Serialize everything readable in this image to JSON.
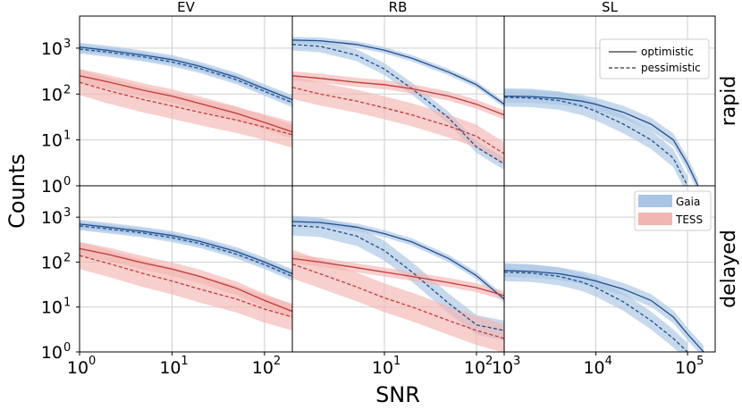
{
  "chart_data": {
    "type": "line",
    "yscale": "log",
    "xscale": "log",
    "ylabel": "Counts",
    "xlabel": "SNR",
    "ylim": [
      1,
      5000
    ],
    "columns": [
      {
        "title": "EV",
        "xlim": [
          1,
          200
        ],
        "xticks": [
          {
            "base": "10",
            "exp": "0"
          },
          {
            "base": "10",
            "exp": "1"
          },
          {
            "base": "10",
            "exp": "2"
          }
        ]
      },
      {
        "title": "RB",
        "xlim": [
          1,
          200
        ],
        "xticks": [
          {
            "base": "10",
            "exp": "1"
          },
          {
            "base": "10",
            "exp": "2"
          }
        ]
      },
      {
        "title": "SL",
        "xlim": [
          1000,
          200000
        ],
        "xticks": [
          {
            "base": "10",
            "exp": "3"
          },
          {
            "base": "10",
            "exp": "4"
          },
          {
            "base": "10",
            "exp": "5"
          }
        ]
      }
    ],
    "rows": [
      {
        "label": "rapid"
      },
      {
        "label": "delayed"
      }
    ],
    "yticks": [
      {
        "base": "10",
        "exp": "0"
      },
      {
        "base": "10",
        "exp": "1"
      },
      {
        "base": "10",
        "exp": "2"
      },
      {
        "base": "10",
        "exp": "3"
      }
    ],
    "legend_lines": {
      "optimistic": "optimistic",
      "pessimistic": "pessimistic",
      "location": "top-right (SL, rapid)"
    },
    "legend_fills": {
      "gaia": "Gaia",
      "tess": "TESS",
      "location": "top-right (SL, delayed)"
    },
    "colors": {
      "gaia_line": "#1f4e8c",
      "gaia_fill": "#a9c4e4",
      "tess_line": "#c0393b",
      "tess_fill": "#f2b6b0"
    },
    "panels": [
      {
        "row": "rapid",
        "col": "EV",
        "series": [
          {
            "survey": "Gaia",
            "style": "optimistic",
            "x": [
              1,
              2,
              5,
              10,
              20,
              50,
              100,
              200
            ],
            "y": [
              1050,
              900,
              700,
              560,
              400,
              230,
              130,
              75
            ],
            "band": 0.1
          },
          {
            "survey": "Gaia",
            "style": "pessimistic",
            "x": [
              1,
              2,
              5,
              10,
              20,
              50,
              100,
              200
            ],
            "y": [
              950,
              820,
              640,
              500,
              360,
              205,
              115,
              65
            ],
            "band": 0.1
          },
          {
            "survey": "TESS",
            "style": "optimistic",
            "x": [
              1,
              2,
              5,
              10,
              20,
              50,
              100,
              200
            ],
            "y": [
              250,
              185,
              120,
              90,
              62,
              38,
              24,
              15
            ],
            "band": 0.15
          },
          {
            "survey": "TESS",
            "style": "pessimistic",
            "x": [
              1,
              2,
              5,
              10,
              20,
              50,
              100,
              200
            ],
            "y": [
              180,
              120,
              75,
              55,
              40,
              27,
              19,
              13
            ],
            "band": 0.28
          }
        ]
      },
      {
        "row": "rapid",
        "col": "RB",
        "series": [
          {
            "survey": "Gaia",
            "style": "optimistic",
            "x": [
              1,
              2,
              5,
              10,
              20,
              50,
              100,
              200
            ],
            "y": [
              1500,
              1450,
              1200,
              900,
              600,
              300,
              160,
              60
            ],
            "band": 0.07
          },
          {
            "survey": "Gaia",
            "style": "pessimistic",
            "x": [
              1,
              2,
              5,
              10,
              20,
              50,
              100,
              200
            ],
            "y": [
              1200,
              1100,
              700,
              350,
              130,
              30,
              7,
              3
            ],
            "band": 0.13
          },
          {
            "survey": "TESS",
            "style": "optimistic",
            "x": [
              1,
              2,
              5,
              10,
              20,
              50,
              100,
              200
            ],
            "y": [
              250,
              220,
              180,
              160,
              130,
              90,
              60,
              35
            ],
            "band": 0.1
          },
          {
            "survey": "TESS",
            "style": "pessimistic",
            "x": [
              1,
              2,
              5,
              10,
              20,
              50,
              100,
              200
            ],
            "y": [
              140,
              100,
              70,
              50,
              35,
              20,
              12,
              5
            ],
            "band": 0.25
          }
        ]
      },
      {
        "row": "rapid",
        "col": "SL",
        "series": [
          {
            "survey": "Gaia",
            "style": "optimistic",
            "x": [
              1000,
              2000,
              4000,
              7000,
              10000,
              20000,
              40000,
              70000,
              100000,
              130000
            ],
            "y": [
              90,
              88,
              80,
              70,
              60,
              40,
              22,
              10,
              3,
              1
            ],
            "band": 0.14
          },
          {
            "survey": "Gaia",
            "style": "pessimistic",
            "x": [
              1000,
              2000,
              4000,
              7000,
              10000,
              20000,
              40000,
              70000,
              100000
            ],
            "y": [
              85,
              82,
              72,
              55,
              42,
              22,
              10,
              4,
              1
            ],
            "band": 0.2
          }
        ]
      },
      {
        "row": "delayed",
        "col": "EV",
        "series": [
          {
            "survey": "Gaia",
            "style": "optimistic",
            "x": [
              1,
              2,
              5,
              10,
              20,
              50,
              100,
              200
            ],
            "y": [
              700,
              600,
              480,
              390,
              290,
              170,
              100,
              55
            ],
            "band": 0.1
          },
          {
            "survey": "Gaia",
            "style": "pessimistic",
            "x": [
              1,
              2,
              5,
              10,
              20,
              50,
              100,
              200
            ],
            "y": [
              640,
              550,
              440,
              350,
              260,
              150,
              88,
              48
            ],
            "band": 0.1
          },
          {
            "survey": "TESS",
            "style": "optimistic",
            "x": [
              1,
              2,
              5,
              10,
              20,
              50,
              100,
              200
            ],
            "y": [
              200,
              150,
              95,
              70,
              48,
              26,
              14,
              8
            ],
            "band": 0.15
          },
          {
            "survey": "TESS",
            "style": "pessimistic",
            "x": [
              1,
              2,
              5,
              10,
              20,
              50,
              100,
              200
            ],
            "y": [
              140,
              95,
              55,
              38,
              25,
              15,
              9,
              6
            ],
            "band": 0.3
          }
        ]
      },
      {
        "row": "delayed",
        "col": "RB",
        "series": [
          {
            "survey": "Gaia",
            "style": "optimistic",
            "x": [
              1,
              2,
              5,
              10,
              20,
              50,
              100,
              200
            ],
            "y": [
              800,
              760,
              600,
              430,
              280,
              120,
              50,
              15
            ],
            "band": 0.08
          },
          {
            "survey": "Gaia",
            "style": "pessimistic",
            "x": [
              1,
              2,
              5,
              10,
              20,
              50,
              100,
              200
            ],
            "y": [
              650,
              600,
              380,
              180,
              60,
              12,
              4,
              3
            ],
            "band": 0.22
          },
          {
            "survey": "TESS",
            "style": "optimistic",
            "x": [
              1,
              2,
              5,
              10,
              20,
              50,
              100,
              200
            ],
            "y": [
              120,
              100,
              75,
              60,
              48,
              35,
              27,
              18
            ],
            "band": 0.1
          },
          {
            "survey": "TESS",
            "style": "pessimistic",
            "x": [
              1,
              2,
              5,
              10,
              20,
              50,
              100,
              200
            ],
            "y": [
              90,
              55,
              28,
              16,
              10,
              5,
              3,
              2
            ],
            "band": 0.32
          }
        ]
      },
      {
        "row": "delayed",
        "col": "SL",
        "series": [
          {
            "survey": "Gaia",
            "style": "optimistic",
            "x": [
              1000,
              2000,
              4000,
              7000,
              10000,
              20000,
              40000,
              70000,
              100000,
              150000
            ],
            "y": [
              65,
              62,
              55,
              45,
              38,
              25,
              14,
              6,
              2.5,
              1
            ],
            "band": 0.14
          },
          {
            "survey": "Gaia",
            "style": "pessimistic",
            "x": [
              1000,
              2000,
              4000,
              7000,
              10000,
              20000,
              40000,
              70000,
              100000
            ],
            "y": [
              60,
              57,
              48,
              36,
              27,
              13,
              5,
              2,
              1
            ],
            "band": 0.2
          }
        ]
      }
    ]
  }
}
